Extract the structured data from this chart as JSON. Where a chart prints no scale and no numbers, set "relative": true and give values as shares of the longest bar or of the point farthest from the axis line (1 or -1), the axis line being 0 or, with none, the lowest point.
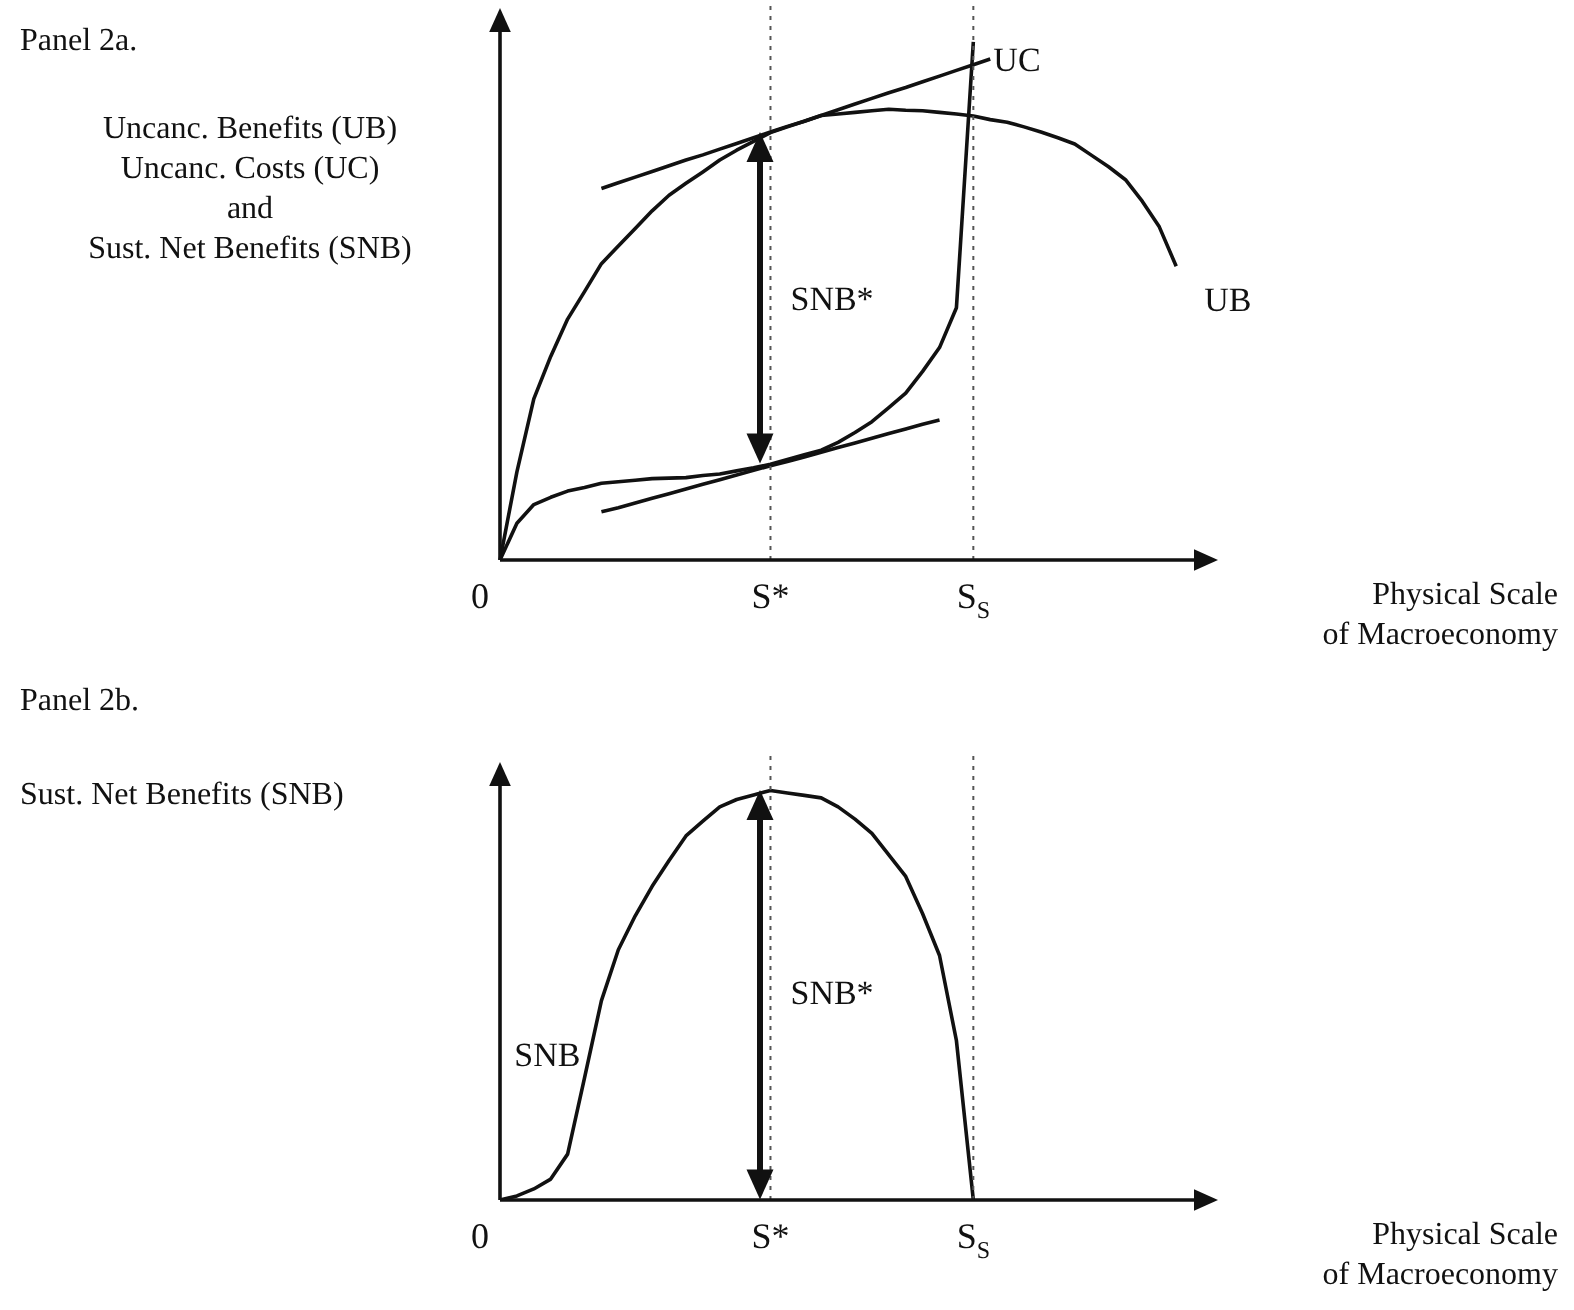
{
  "chart_data": [
    {
      "type": "line",
      "ylabel": "Uncanc. Benefits (UB)\nUncanc. Costs (UC)\nand\nSust. Net Benefits (SNB)",
      "xlabel": "Physical Scale\nof Macroeconomy",
      "relative": true,
      "marker": "none",
      "categories": [
        "0",
        null,
        null,
        null,
        null,
        null,
        null,
        null,
        null,
        null,
        null,
        null,
        null,
        null,
        null,
        null,
        "S*",
        null,
        null,
        null,
        null,
        null,
        null,
        null,
        null,
        null,
        null,
        null,
        "S$_{S}$",
        null,
        null,
        null,
        null,
        null,
        null,
        null,
        null,
        null,
        null,
        null,
        null,
        null,
        null
      ],
      "series": [
        {
          "name": "UB",
          "color": "#111111",
          "values": [
            0,
            0.17,
            0.311,
            0.393,
            0.465,
            0.518,
            0.572,
            0.606,
            0.64,
            0.674,
            0.704,
            0.727,
            0.749,
            0.772,
            0.791,
            0.808,
            0.825,
            0.836,
            0.847,
            0.858,
            0.861,
            0.864,
            0.867,
            0.87,
            0.868,
            0.867,
            0.864,
            0.861,
            0.857,
            0.85,
            0.845,
            0.836,
            0.826,
            0.815,
            0.803,
            0.781,
            0.759,
            0.734,
            0.692,
            0.643,
            0.567,
            null,
            null
          ]
        },
        {
          "name": "UC",
          "color": "#111111",
          "values": [
            0,
            0.071,
            0.107,
            0.121,
            0.133,
            0.14,
            0.148,
            0.151,
            0.154,
            0.157,
            0.158,
            0.159,
            0.163,
            0.166,
            0.172,
            0.178,
            0.185,
            0.194,
            0.203,
            0.212,
            0.227,
            0.246,
            0.267,
            0.294,
            0.322,
            0.364,
            0.41,
            0.487,
            1,
            null,
            null,
            null,
            null,
            null,
            null,
            null,
            null,
            null,
            null,
            null,
            null,
            null,
            null
          ]
        },
        {
          "color": "#111111",
          "values": [
            null,
            null,
            null,
            null,
            null,
            null,
            0.717,
            0.728,
            0.739,
            0.75,
            0.761,
            0.772,
            0.782,
            0.793,
            0.804,
            0.815,
            0.826,
            0.837,
            0.847,
            0.858,
            0.869,
            0.88,
            0.891,
            0.902,
            0.912,
            0.923,
            0.934,
            0.945,
            0.956,
            0.967,
            null,
            null,
            null,
            null,
            null,
            null,
            null,
            null,
            null,
            null,
            null,
            null,
            null
          ]
        },
        {
          "color": "#111111",
          "values": [
            null,
            null,
            null,
            null,
            null,
            null,
            0.093,
            0.101,
            0.11,
            0.119,
            0.128,
            0.137,
            0.146,
            0.155,
            0.164,
            0.173,
            0.182,
            0.19,
            0.199,
            0.208,
            0.217,
            0.226,
            0.235,
            0.244,
            0.253,
            0.262,
            0.27,
            null,
            null,
            null,
            null,
            null,
            null,
            null,
            null,
            null,
            null,
            null,
            null,
            null,
            null,
            null,
            null
          ]
        }
      ],
      "ref_lines": [
        {
          "axis": "x",
          "value": "S*",
          "line_style": "dotted",
          "color": "#555555"
        },
        {
          "axis": "x",
          "value": "S$_{S}$",
          "line_style": "dotted",
          "color": "#555555"
        }
      ],
      "annotations": [
        "Panel 2a.",
        {
          "text": "SNB*",
          "x": "S*",
          "y": 0.5
        }
      ]
    },
    {
      "type": "line",
      "ylabel": "Sust. Net Benefits (SNB)",
      "xlabel": "Physical Scale\nof Macroeconomy",
      "relative": true,
      "marker": "none",
      "categories": [
        "0",
        null,
        null,
        null,
        null,
        null,
        null,
        null,
        null,
        null,
        null,
        null,
        null,
        null,
        null,
        null,
        "S*",
        null,
        null,
        null,
        null,
        null,
        null,
        null,
        null,
        null,
        null,
        null,
        "S$_{S}$",
        null,
        null,
        null,
        null,
        null,
        null,
        null,
        null,
        null,
        null,
        null,
        null,
        null,
        null
      ],
      "series": [
        {
          "name": "SNB",
          "color": "#111111",
          "values": [
            0,
            0.01,
            0.027,
            0.051,
            0.112,
            0.298,
            0.487,
            0.611,
            0.694,
            0.766,
            0.829,
            0.889,
            0.925,
            0.96,
            0.978,
            0.989,
            1,
            0.994,
            0.988,
            0.982,
            0.96,
            0.93,
            0.895,
            0.843,
            0.79,
            0.699,
            0.597,
            0.389,
            0,
            null,
            null,
            null,
            null,
            null,
            null,
            null,
            null,
            null,
            null,
            null,
            null,
            null,
            null
          ]
        }
      ],
      "ref_lines": [
        {
          "axis": "x",
          "value": "S*",
          "line_style": "dotted",
          "color": "#555555"
        },
        {
          "axis": "x",
          "value": "S$_{S}$",
          "line_style": "dotted",
          "color": "#555555"
        }
      ],
      "annotations": [
        "Panel 2b.",
        {
          "text": "SNB*",
          "x": "S*",
          "y": 0.5
        }
      ]
    }
  ]
}
